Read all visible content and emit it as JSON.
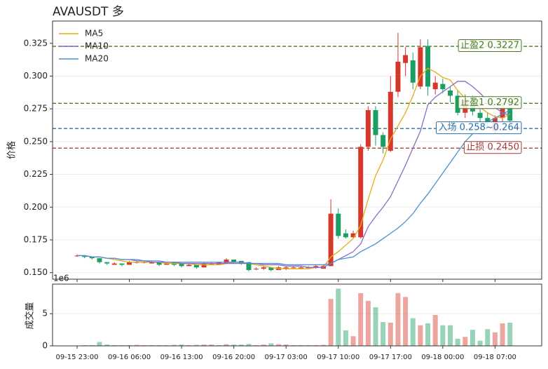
{
  "chart_data": {
    "type": "candlestick",
    "title": "AVAUSDT  多",
    "y_label": "价格",
    "volume_label": "成交量",
    "volume_offset": "1e6",
    "up_color": "#d6372b",
    "down_color": "#1a9e62",
    "grid": true,
    "legend_position": "upper left",
    "categories": [
      "09-15 23:00",
      null,
      null,
      null,
      null,
      null,
      null,
      "09-16 06:00",
      null,
      null,
      null,
      null,
      null,
      null,
      "09-16 13:00",
      null,
      null,
      null,
      null,
      null,
      null,
      "09-16 20:00",
      null,
      null,
      null,
      null,
      null,
      null,
      "09-17 03:00",
      null,
      null,
      null,
      null,
      null,
      null,
      "09-17 10:00",
      null,
      null,
      null,
      null,
      null,
      null,
      "09-17 17:00",
      null,
      null,
      null,
      null,
      null,
      null,
      "09-18 00:00",
      null,
      null,
      null,
      null,
      null,
      null,
      "09-18 07:00",
      null,
      null
    ],
    "open": [
      0.163,
      0.163,
      0.162,
      0.161,
      0.158,
      0.156,
      0.157,
      0.156,
      0.158,
      0.158,
      0.157,
      0.158,
      0.156,
      0.158,
      0.157,
      0.155,
      0.156,
      0.154,
      0.157,
      0.156,
      0.157,
      0.16,
      0.159,
      0.158,
      0.153,
      0.153,
      0.154,
      0.152,
      0.153,
      0.154,
      0.153,
      0.154,
      0.154,
      0.153,
      0.155,
      0.195,
      0.18,
      0.177,
      0.177,
      0.246,
      0.274,
      0.255,
      0.243,
      0.288,
      0.31,
      0.312,
      0.292,
      0.323,
      0.29,
      0.294,
      0.289,
      0.285,
      0.272,
      0.283,
      0.272,
      0.268,
      0.258,
      0.268,
      0.276
    ],
    "high": [
      0.164,
      0.163,
      0.162,
      0.161,
      0.158,
      0.158,
      0.157,
      0.159,
      0.159,
      0.159,
      0.159,
      0.158,
      0.158,
      0.158,
      0.157,
      0.157,
      0.156,
      0.158,
      0.158,
      0.158,
      0.161,
      0.16,
      0.159,
      0.158,
      0.154,
      0.155,
      0.154,
      0.155,
      0.155,
      0.155,
      0.155,
      0.155,
      0.156,
      0.156,
      0.206,
      0.199,
      0.183,
      0.182,
      0.248,
      0.277,
      0.277,
      0.257,
      0.3,
      0.333,
      0.322,
      0.318,
      0.328,
      0.328,
      0.3,
      0.298,
      0.292,
      0.289,
      0.286,
      0.285,
      0.275,
      0.272,
      0.27,
      0.279,
      0.278
    ],
    "low": [
      0.162,
      0.161,
      0.16,
      0.157,
      0.156,
      0.156,
      0.155,
      0.156,
      0.157,
      0.157,
      0.157,
      0.155,
      0.156,
      0.155,
      0.154,
      0.155,
      0.153,
      0.154,
      0.156,
      0.156,
      0.157,
      0.157,
      0.156,
      0.151,
      0.152,
      0.152,
      0.151,
      0.152,
      0.152,
      0.153,
      0.153,
      0.153,
      0.153,
      0.153,
      0.155,
      0.176,
      0.176,
      0.176,
      0.176,
      0.243,
      0.247,
      0.241,
      0.242,
      0.284,
      0.3,
      0.29,
      0.29,
      0.285,
      0.286,
      0.287,
      0.28,
      0.27,
      0.268,
      0.27,
      0.264,
      0.262,
      0.256,
      0.265,
      0.264
    ],
    "close": [
      0.163,
      0.162,
      0.161,
      0.158,
      0.157,
      0.157,
      0.156,
      0.158,
      0.158,
      0.158,
      0.158,
      0.156,
      0.157,
      0.156,
      0.155,
      0.156,
      0.154,
      0.157,
      0.157,
      0.158,
      0.16,
      0.158,
      0.157,
      0.152,
      0.153,
      0.154,
      0.152,
      0.154,
      0.154,
      0.154,
      0.154,
      0.154,
      0.155,
      0.155,
      0.195,
      0.178,
      0.177,
      0.18,
      0.246,
      0.274,
      0.255,
      0.246,
      0.288,
      0.311,
      0.316,
      0.295,
      0.322,
      0.292,
      0.295,
      0.29,
      0.285,
      0.272,
      0.282,
      0.273,
      0.268,
      0.265,
      0.268,
      0.276,
      0.266
    ],
    "volume": [
      0.05,
      0.1,
      0.1,
      0.6,
      0.2,
      0.1,
      0.1,
      0.1,
      0.15,
      0.1,
      0.1,
      0.1,
      0.1,
      0.15,
      0.2,
      0.1,
      0.15,
      0.2,
      0.2,
      0.1,
      0.25,
      0.2,
      0.2,
      0.3,
      0.1,
      0.2,
      0.4,
      0.25,
      0.2,
      0.1,
      0.1,
      0.1,
      0.1,
      0.15,
      7.3,
      8.9,
      2.4,
      1.5,
      8.2,
      7.0,
      6.0,
      3.7,
      3.6,
      8.2,
      7.6,
      4.3,
      3.2,
      3.5,
      4.8,
      3.2,
      3.2,
      1.1,
      1.4,
      2.5,
      0.8,
      2.6,
      2.1,
      3.5,
      3.6
    ],
    "series": [
      {
        "name": "MA5",
        "color": "#e3ac12",
        "values": [
          0.163,
          0.163,
          0.162,
          0.162,
          0.161,
          0.16,
          0.159,
          0.158,
          0.158,
          0.158,
          0.158,
          0.158,
          0.157,
          0.157,
          0.157,
          0.157,
          0.156,
          0.156,
          0.156,
          0.156,
          0.157,
          0.158,
          0.158,
          0.157,
          0.156,
          0.155,
          0.154,
          0.153,
          0.153,
          0.153,
          0.153,
          0.153,
          0.154,
          0.154,
          0.162,
          0.166,
          0.171,
          0.176,
          0.186,
          0.206,
          0.224,
          0.236,
          0.252,
          0.262,
          0.272,
          0.285,
          0.3,
          0.306,
          0.303,
          0.299,
          0.297,
          0.289,
          0.283,
          0.28,
          0.276,
          0.272,
          0.269,
          0.268,
          0.271
        ]
      },
      {
        "name": "MA10",
        "color": "#8a6cc6",
        "values": [
          0.163,
          0.163,
          0.162,
          0.162,
          0.161,
          0.161,
          0.16,
          0.16,
          0.159,
          0.159,
          0.158,
          0.158,
          0.158,
          0.158,
          0.157,
          0.157,
          0.157,
          0.157,
          0.157,
          0.157,
          0.157,
          0.157,
          0.157,
          0.157,
          0.157,
          0.156,
          0.156,
          0.156,
          0.155,
          0.155,
          0.155,
          0.154,
          0.154,
          0.154,
          0.157,
          0.16,
          0.163,
          0.166,
          0.172,
          0.185,
          0.193,
          0.2,
          0.208,
          0.22,
          0.232,
          0.245,
          0.258,
          0.278,
          0.284,
          0.288,
          0.292,
          0.296,
          0.296,
          0.292,
          0.287,
          0.281,
          0.276,
          0.272,
          0.27
        ]
      },
      {
        "name": "MA20",
        "color": "#4a8fd4",
        "values": [
          0.163,
          0.163,
          0.162,
          0.162,
          0.161,
          0.161,
          0.16,
          0.16,
          0.16,
          0.159,
          0.159,
          0.159,
          0.158,
          0.158,
          0.158,
          0.158,
          0.158,
          0.158,
          0.158,
          0.158,
          0.158,
          0.158,
          0.158,
          0.157,
          0.157,
          0.157,
          0.157,
          0.157,
          0.156,
          0.156,
          0.156,
          0.156,
          0.156,
          0.156,
          0.157,
          0.16,
          0.161,
          0.162,
          0.166,
          0.169,
          0.172,
          0.176,
          0.18,
          0.184,
          0.189,
          0.195,
          0.203,
          0.21,
          0.218,
          0.226,
          0.234,
          0.242,
          0.25,
          0.256,
          0.261,
          0.265,
          0.268,
          0.271,
          0.274
        ]
      }
    ],
    "levels": [
      {
        "label": "止盈2 0.3227",
        "value": 0.3227,
        "color": "#4a7a1e"
      },
      {
        "label": "止盈1 0.2792",
        "value": 0.2792,
        "color": "#4a7a1e"
      },
      {
        "label": "入场 0.258~0.264",
        "value": 0.26,
        "color": "#2c6fa8"
      },
      {
        "label": "止损 0.2450",
        "value": 0.245,
        "color": "#a83a3a"
      }
    ],
    "ylim": [
      0.145,
      0.342
    ],
    "yticks": [
      {
        "value": 0.15,
        "label": "0.150"
      },
      0.175,
      {
        "value": 0.2,
        "label": "0.200"
      },
      0.225,
      {
        "value": 0.25,
        "label": "0.250"
      },
      0.275,
      {
        "value": 0.3,
        "label": "0.300"
      },
      0.325
    ],
    "volume_ylim": [
      0,
      9.6
    ],
    "volume_yticks": [
      0,
      5
    ]
  }
}
